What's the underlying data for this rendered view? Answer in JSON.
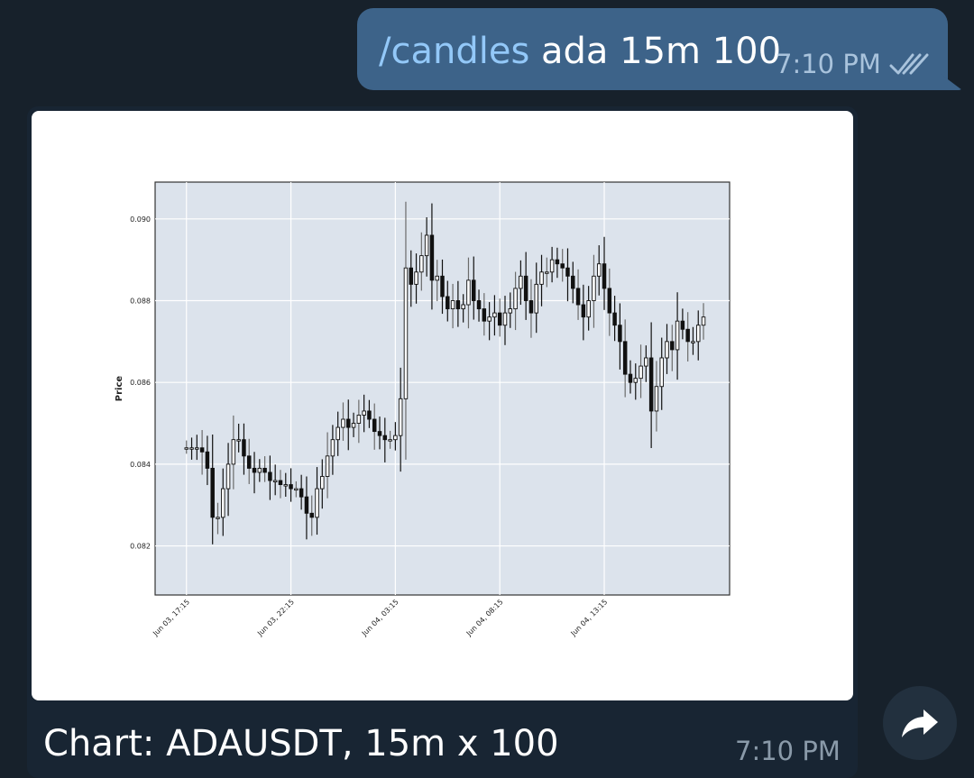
{
  "outgoing": {
    "command": "/candles",
    "args": " ada 15m 100",
    "time": "7:10 PM",
    "status_icon": "double-check-icon"
  },
  "incoming": {
    "caption": "Chart: ADAUSDT, 15m x 100",
    "time": "7:10 PM"
  },
  "share": {
    "icon": "share-arrow-icon"
  },
  "chart_data": {
    "type": "candlestick",
    "ylabel": "Price",
    "ylim": [
      0.0808,
      0.0909
    ],
    "y_ticks": [
      0.082,
      0.084,
      0.086,
      0.088,
      0.09
    ],
    "y_tick_labels": [
      "0.082",
      "0.084",
      "0.086",
      "0.088",
      "0.090"
    ],
    "x_ticks": [
      {
        "index": 0,
        "label": "Jun 03, 17:15"
      },
      {
        "index": 20,
        "label": "Jun 03, 22:15"
      },
      {
        "index": 40,
        "label": "Jun 04, 03:15"
      },
      {
        "index": 60,
        "label": "Jun 04, 08:15"
      },
      {
        "index": 80,
        "label": "Jun 04, 13:15"
      }
    ],
    "x_range": [
      -6,
      104
    ],
    "grid": true,
    "close": [
      0.0844,
      0.0844,
      0.0844,
      0.0843,
      0.0839,
      0.0827,
      0.0827,
      0.0834,
      0.084,
      0.0846,
      0.0846,
      0.0842,
      0.0839,
      0.0838,
      0.0839,
      0.0838,
      0.0836,
      0.0836,
      0.0835,
      0.0835,
      0.0834,
      0.0834,
      0.0832,
      0.0828,
      0.0827,
      0.0834,
      0.0837,
      0.0842,
      0.0846,
      0.0849,
      0.0851,
      0.0849,
      0.085,
      0.0852,
      0.0853,
      0.0851,
      0.0848,
      0.0847,
      0.0846,
      0.0846,
      0.0847,
      0.0856,
      0.0888,
      0.0884,
      0.0887,
      0.0891,
      0.0896,
      0.0885,
      0.0886,
      0.0881,
      0.0878,
      0.088,
      0.0878,
      0.0879,
      0.0885,
      0.088,
      0.0878,
      0.0875,
      0.0876,
      0.0877,
      0.0874,
      0.0877,
      0.0878,
      0.0883,
      0.0886,
      0.088,
      0.0877,
      0.0884,
      0.0887,
      0.0887,
      0.089,
      0.0889,
      0.0888,
      0.0886,
      0.0883,
      0.0879,
      0.0876,
      0.088,
      0.0886,
      0.0889,
      0.0883,
      0.0877,
      0.0874,
      0.087,
      0.0862,
      0.086,
      0.0861,
      0.0864,
      0.0866,
      0.0853,
      0.0859,
      0.0866,
      0.087,
      0.0868,
      0.0875,
      0.0873,
      0.087,
      0.087,
      0.0874,
      0.0876
    ]
  }
}
